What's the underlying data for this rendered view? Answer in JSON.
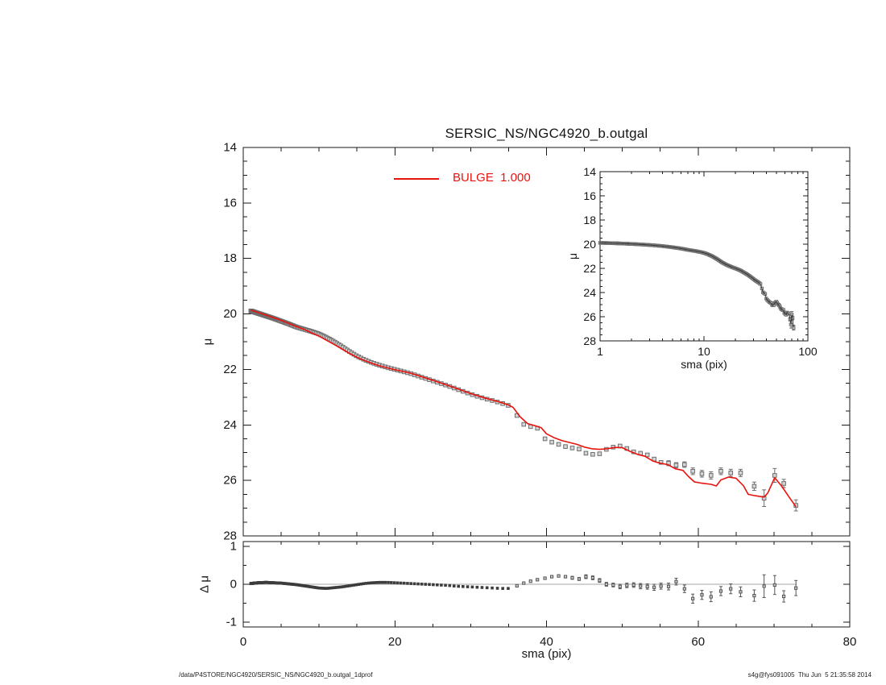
{
  "title": "SERSIC_NS/NGC4920_b.outgal",
  "legend": {
    "label": "BULGE  1.000",
    "color": "#e8130e"
  },
  "footer": {
    "left": "/data/P4STORE/NGC4920/SERSIC_NS/NGC4920_b.outgal_1dprof",
    "right": "s4g@fys091005  Thu Jun  5 21:35:58 2014"
  },
  "colors": {
    "model": "#e8130e",
    "axis": "#1a1a1a",
    "marker_stroke": "#6e6e6e",
    "marker_fill": "#d6d6d6",
    "inset_line": "#2f2f2f",
    "resid_marker": "#3c3c3c",
    "zero_line": "#a6a6a6"
  },
  "chart_data": [
    {
      "id": "main",
      "type": "scatter",
      "title": "SERSIC_NS/NGC4920_b.outgal",
      "xlabel": "sma (pix)",
      "ylabel": "μ",
      "xlim": [
        0,
        80
      ],
      "ylim": [
        14,
        28
      ],
      "y_inverted": true,
      "x_major": [
        0,
        20,
        40,
        60,
        80
      ],
      "x_minor_step": 5,
      "x_labels_visible": false,
      "y_major": [
        14,
        16,
        18,
        20,
        22,
        24,
        26,
        28
      ],
      "y_minor_step": 0.5,
      "legend_position": "top-center",
      "grid": false,
      "series_dense_ratio": 1.021,
      "data_knots": [
        [
          1,
          19.89
        ],
        [
          2,
          19.98
        ],
        [
          3,
          20.07
        ],
        [
          4,
          20.16
        ],
        [
          5,
          20.26
        ],
        [
          6,
          20.36
        ],
        [
          7,
          20.47
        ],
        [
          8,
          20.55
        ],
        [
          9,
          20.63
        ],
        [
          10,
          20.72
        ],
        [
          11,
          20.85
        ],
        [
          12,
          21.0
        ],
        [
          13,
          21.17
        ],
        [
          14,
          21.35
        ],
        [
          15,
          21.52
        ],
        [
          16,
          21.65
        ],
        [
          17,
          21.76
        ],
        [
          18,
          21.85
        ],
        [
          19,
          21.93
        ],
        [
          20,
          22.0
        ],
        [
          21,
          22.07
        ],
        [
          22,
          22.14
        ],
        [
          23,
          22.23
        ],
        [
          24,
          22.32
        ],
        [
          25,
          22.41
        ],
        [
          26,
          22.5
        ],
        [
          27,
          22.59
        ],
        [
          28,
          22.69
        ],
        [
          29,
          22.79
        ],
        [
          30,
          22.89
        ],
        [
          31,
          22.98
        ],
        [
          32,
          23.06
        ],
        [
          33,
          23.13
        ],
        [
          34,
          23.21
        ],
        [
          35,
          23.3
        ],
        [
          35.6,
          23.38
        ]
      ],
      "data_sparse": [
        [
          36.1,
          23.66,
          0
        ],
        [
          37,
          23.98,
          0
        ],
        [
          37.9,
          24.06,
          0
        ],
        [
          38.8,
          24.12,
          0
        ],
        [
          39.8,
          24.5,
          0
        ],
        [
          40.7,
          24.62,
          0
        ],
        [
          41.6,
          24.7,
          0
        ],
        [
          42.5,
          24.78,
          0
        ],
        [
          43.4,
          24.83,
          0.04
        ],
        [
          44.3,
          24.87,
          0.04
        ],
        [
          45.2,
          25.02,
          0.05
        ],
        [
          46.1,
          25.06,
          0.05
        ],
        [
          47,
          25.04,
          0.05
        ],
        [
          47.9,
          24.88,
          0.05
        ],
        [
          48.8,
          24.8,
          0.05
        ],
        [
          49.7,
          24.76,
          0.06
        ],
        [
          50.6,
          24.85,
          0.06
        ],
        [
          51.5,
          24.97,
          0.06
        ],
        [
          52.4,
          25.02,
          0.07
        ],
        [
          53.3,
          25.08,
          0.07
        ],
        [
          54.2,
          25.23,
          0.08
        ],
        [
          55.1,
          25.35,
          0.08
        ],
        [
          56.1,
          25.38,
          0.09
        ],
        [
          57.1,
          25.45,
          0.09
        ],
        [
          58.2,
          25.43,
          0.1
        ],
        [
          59.3,
          25.67,
          0.12
        ],
        [
          60.5,
          25.76,
          0.12
        ],
        [
          61.7,
          25.82,
          0.13
        ],
        [
          63,
          25.67,
          0.12
        ],
        [
          64.3,
          25.73,
          0.13
        ],
        [
          65.6,
          25.73,
          0.13
        ],
        [
          67.4,
          26.21,
          0.15
        ],
        [
          68.7,
          26.64,
          0.3
        ],
        [
          70.1,
          25.82,
          0.25
        ],
        [
          71.3,
          26.11,
          0.15
        ],
        [
          72.9,
          26.9,
          0.2
        ]
      ],
      "model_name": "BULGE  1.000",
      "model_knots": [
        [
          1,
          19.86
        ],
        [
          3,
          20.04
        ],
        [
          5,
          20.23
        ],
        [
          7,
          20.45
        ],
        [
          8,
          20.55
        ],
        [
          9,
          20.68
        ],
        [
          10,
          20.8
        ],
        [
          11,
          20.95
        ],
        [
          12,
          21.1
        ],
        [
          13,
          21.26
        ],
        [
          14,
          21.42
        ],
        [
          15,
          21.56
        ],
        [
          16,
          21.68
        ],
        [
          17,
          21.78
        ],
        [
          18,
          21.87
        ],
        [
          19,
          21.94
        ],
        [
          20,
          22.01
        ],
        [
          22,
          22.13
        ],
        [
          24,
          22.3
        ],
        [
          26,
          22.48
        ],
        [
          28,
          22.67
        ],
        [
          30,
          22.87
        ],
        [
          32,
          23.04
        ],
        [
          34,
          23.19
        ],
        [
          35,
          23.28
        ],
        [
          35.6,
          23.37
        ],
        [
          36.5,
          23.7
        ],
        [
          37.5,
          23.95
        ],
        [
          38.5,
          24.03
        ],
        [
          39.3,
          24.1
        ],
        [
          40,
          24.32
        ],
        [
          41,
          24.46
        ],
        [
          42,
          24.56
        ],
        [
          43,
          24.63
        ],
        [
          44,
          24.7
        ],
        [
          45,
          24.8
        ],
        [
          46,
          24.86
        ],
        [
          47,
          24.88
        ],
        [
          48,
          24.86
        ],
        [
          49,
          24.81
        ],
        [
          50,
          24.82
        ],
        [
          51,
          24.95
        ],
        [
          52,
          25.06
        ],
        [
          53,
          25.13
        ],
        [
          54,
          25.3
        ],
        [
          55,
          25.38
        ],
        [
          56,
          25.43
        ],
        [
          57,
          25.58
        ],
        [
          58,
          25.64
        ],
        [
          58.7,
          25.85
        ],
        [
          59.5,
          26.05
        ],
        [
          60.5,
          26.1
        ],
        [
          61.7,
          26.14
        ],
        [
          62.4,
          26.2
        ],
        [
          63,
          25.98
        ],
        [
          64,
          25.88
        ],
        [
          65,
          25.92
        ],
        [
          66,
          26.2
        ],
        [
          66.6,
          26.5
        ],
        [
          67.5,
          26.55
        ],
        [
          68.7,
          26.6
        ],
        [
          69.2,
          26.45
        ],
        [
          70.1,
          25.9
        ],
        [
          71,
          26.2
        ],
        [
          72,
          26.6
        ],
        [
          72.9,
          26.95
        ]
      ]
    },
    {
      "id": "inset",
      "type": "scatter",
      "xlabel": "sma (pix)",
      "ylabel": "μ",
      "x_scale": "log",
      "xlim": [
        1,
        100
      ],
      "ylim": [
        14,
        28
      ],
      "y_inverted": true,
      "x_major": [
        1,
        10,
        100
      ],
      "x_minor": [
        2,
        3,
        4,
        5,
        6,
        7,
        8,
        9,
        20,
        30,
        40,
        50,
        60,
        70,
        80,
        90
      ],
      "y_major": [
        14,
        16,
        18,
        20,
        22,
        24,
        26,
        28
      ],
      "y_minor_step": 0.5,
      "note": "same data as main panel, connected by thin black line"
    },
    {
      "id": "residual",
      "type": "scatter",
      "xlabel": "sma (pix)",
      "ylabel": "Δ μ",
      "xlim": [
        0,
        80
      ],
      "ylim": [
        -1.128,
        1.128
      ],
      "x_major": [
        0,
        20,
        40,
        60,
        80
      ],
      "x_minor_step": 5,
      "x_labels_visible": true,
      "y_major": [
        -1,
        0,
        1
      ],
      "y_minor_step": 0.5,
      "zero_line_extent": [
        1,
        73
      ],
      "resid_knots": [
        [
          1,
          0.02
        ],
        [
          2,
          0.04
        ],
        [
          3,
          0.05
        ],
        [
          4,
          0.04
        ],
        [
          5,
          0.03
        ],
        [
          6,
          0.01
        ],
        [
          7,
          -0.01
        ],
        [
          8,
          -0.04
        ],
        [
          9,
          -0.07
        ],
        [
          10,
          -0.1
        ],
        [
          11,
          -0.11
        ],
        [
          12,
          -0.09
        ],
        [
          13,
          -0.07
        ],
        [
          14,
          -0.04
        ],
        [
          15,
          -0.01
        ],
        [
          16,
          0.02
        ],
        [
          17,
          0.04
        ],
        [
          18,
          0.05
        ],
        [
          19,
          0.05
        ],
        [
          20,
          0.04
        ],
        [
          21,
          0.03
        ],
        [
          22,
          0.02
        ],
        [
          23,
          0.01
        ],
        [
          24,
          0.0
        ],
        [
          25,
          -0.01
        ],
        [
          26,
          -0.02
        ],
        [
          27,
          -0.03
        ],
        [
          28,
          -0.05
        ],
        [
          29,
          -0.06
        ],
        [
          30,
          -0.07
        ],
        [
          31,
          -0.08
        ],
        [
          32,
          -0.09
        ],
        [
          33,
          -0.1
        ],
        [
          34,
          -0.11
        ],
        [
          35,
          -0.11
        ],
        [
          35.6,
          -0.1
        ]
      ],
      "resid_sparse": [
        [
          36.1,
          -0.04,
          0
        ],
        [
          37,
          0.03,
          0
        ],
        [
          37.9,
          0.08,
          0
        ],
        [
          38.8,
          0.12,
          0
        ],
        [
          39.8,
          0.16,
          0
        ],
        [
          40.7,
          0.2,
          0
        ],
        [
          41.6,
          0.22,
          0
        ],
        [
          42.5,
          0.2,
          0
        ],
        [
          43.4,
          0.17,
          0.04
        ],
        [
          44.3,
          0.14,
          0.04
        ],
        [
          45.2,
          0.2,
          0.05
        ],
        [
          46.1,
          0.17,
          0.05
        ],
        [
          47,
          0.1,
          0.05
        ],
        [
          47.9,
          0.0,
          0.05
        ],
        [
          48.8,
          -0.02,
          0.05
        ],
        [
          49.7,
          -0.06,
          0.06
        ],
        [
          50.6,
          -0.03,
          0.06
        ],
        [
          51.5,
          -0.02,
          0.06
        ],
        [
          52.4,
          -0.05,
          0.07
        ],
        [
          53.3,
          -0.06,
          0.07
        ],
        [
          54.2,
          -0.08,
          0.08
        ],
        [
          55.1,
          -0.05,
          0.08
        ],
        [
          56.1,
          -0.06,
          0.09
        ],
        [
          57.1,
          0.07,
          0.09
        ],
        [
          58.2,
          -0.12,
          0.1
        ],
        [
          59.3,
          -0.38,
          0.12
        ],
        [
          60.5,
          -0.28,
          0.12
        ],
        [
          61.7,
          -0.33,
          0.13
        ],
        [
          63,
          -0.18,
          0.12
        ],
        [
          64.3,
          -0.12,
          0.13
        ],
        [
          65.6,
          -0.2,
          0.13
        ],
        [
          67.4,
          -0.3,
          0.15
        ],
        [
          68.7,
          -0.05,
          0.3
        ],
        [
          70.1,
          -0.02,
          0.25
        ],
        [
          71.3,
          -0.32,
          0.15
        ],
        [
          72.9,
          -0.1,
          0.2
        ]
      ]
    }
  ]
}
